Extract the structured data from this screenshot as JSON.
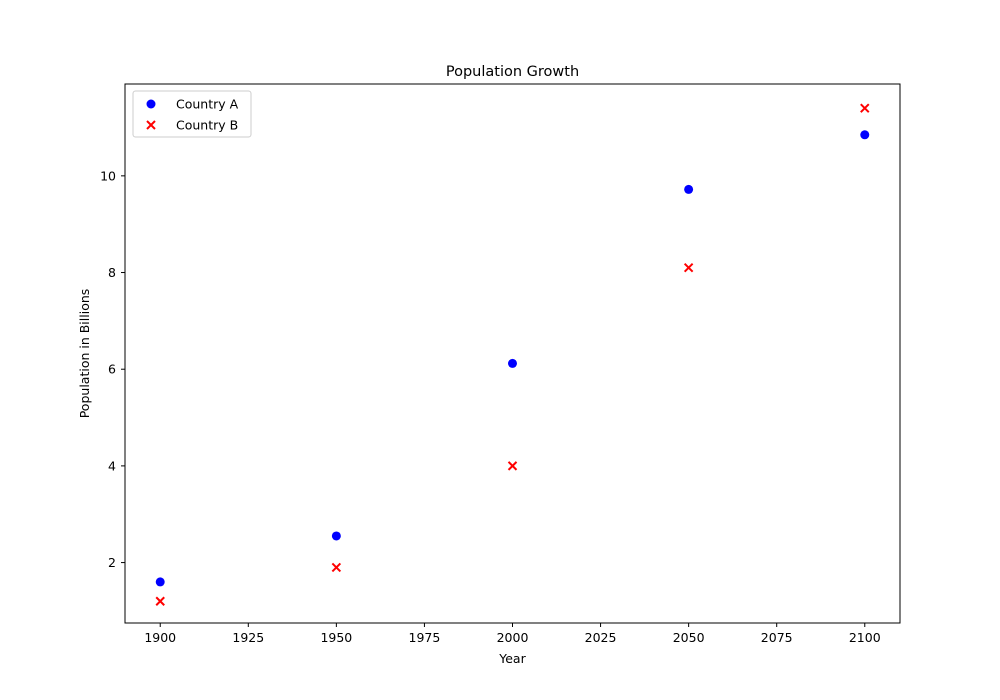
{
  "chart_data": {
    "type": "scatter",
    "title": "Population Growth",
    "xlabel": "Year",
    "ylabel": "Population in Billions",
    "xlim": [
      1890,
      2110
    ],
    "ylim": [
      0.75,
      11.9
    ],
    "xticks": [
      1900,
      1925,
      1950,
      1975,
      2000,
      2025,
      2050,
      2075,
      2100
    ],
    "yticks": [
      2,
      4,
      6,
      8,
      10
    ],
    "grid": false,
    "legend_position": "top-left",
    "x": [
      1900,
      1950,
      2000,
      2050,
      2100
    ],
    "series": [
      {
        "name": "Country A",
        "marker": "circle",
        "color": "#0000ff",
        "values": [
          1.6,
          2.55,
          6.12,
          9.72,
          10.85
        ]
      },
      {
        "name": "Country B",
        "marker": "x",
        "color": "#ff0000",
        "values": [
          1.2,
          1.9,
          4.0,
          8.1,
          11.4
        ]
      }
    ]
  }
}
